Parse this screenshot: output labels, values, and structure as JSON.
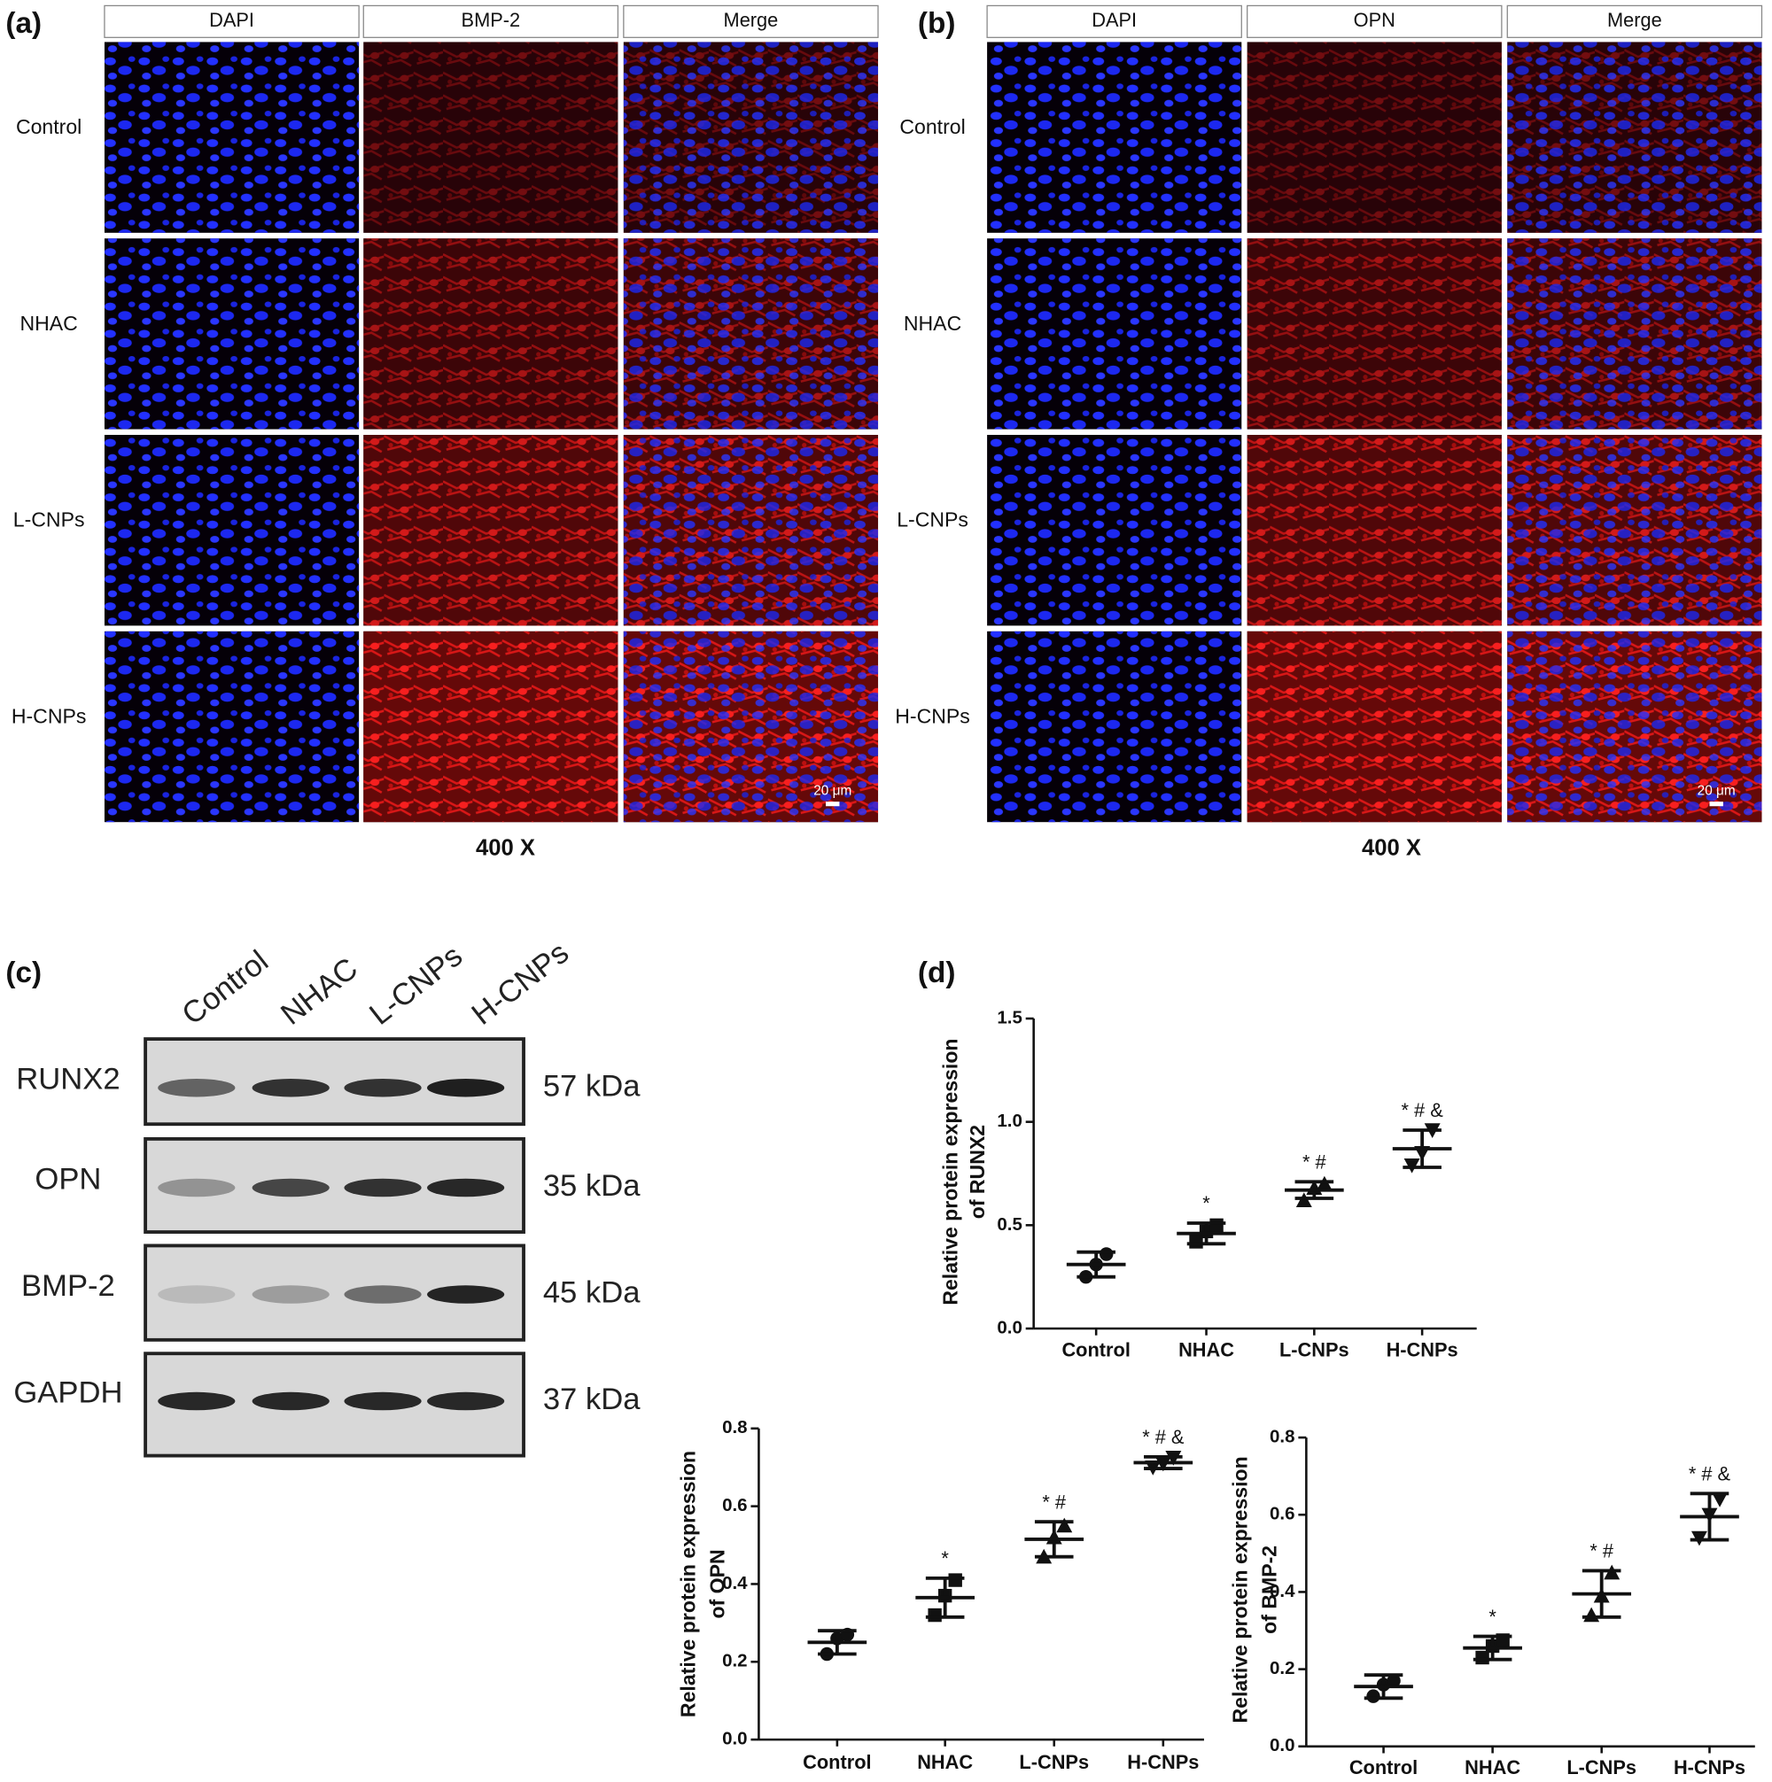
{
  "panels": {
    "a": {
      "label": "(a)",
      "columns": [
        "DAPI",
        "BMP-2",
        "Merge"
      ],
      "rows": [
        "Control",
        "NHAC",
        "L-CNPs",
        "H-CNPs"
      ],
      "scale_bar": "20 μm",
      "magnification": "400 X"
    },
    "b": {
      "label": "(b)",
      "columns": [
        "DAPI",
        "OPN",
        "Merge"
      ],
      "rows": [
        "Control",
        "NHAC",
        "L-CNPs",
        "H-CNPs"
      ],
      "scale_bar": "20 μm",
      "magnification": "400 X"
    },
    "c": {
      "label": "(c)",
      "lanes": [
        "Control",
        "NHAC",
        "L-CNPs",
        "H-CNPs"
      ],
      "proteins": [
        "RUNX2",
        "OPN",
        "BMP-2",
        "GAPDH"
      ],
      "weights": [
        "57 kDa",
        "35 kDa",
        "45 kDa",
        "37 kDa"
      ]
    },
    "d": {
      "label": "(d)"
    }
  },
  "chart_data": [
    {
      "type": "dotplot",
      "ylabel": [
        "Relative protein expression",
        "of RUNX2"
      ],
      "categories": [
        "Control",
        "NHAC",
        "L-CNPs",
        "H-CNPs"
      ],
      "values": [
        0.31,
        0.46,
        0.67,
        0.87
      ],
      "errors": [
        0.06,
        0.05,
        0.04,
        0.09
      ],
      "points": [
        [
          0.25,
          0.31,
          0.36
        ],
        [
          0.42,
          0.47,
          0.5
        ],
        [
          0.62,
          0.68,
          0.7
        ],
        [
          0.79,
          0.85,
          0.96
        ]
      ],
      "markers": [
        "circle",
        "square",
        "triangle",
        "triangle-down"
      ],
      "annotations": [
        null,
        "*",
        "* #",
        "* # &"
      ],
      "ylim": [
        0,
        1.5
      ],
      "yticks": [
        {
          "value": 0,
          "label": "0.0"
        },
        {
          "value": 0.5,
          "label": "0.5"
        },
        {
          "value": 1,
          "label": "1.0"
        },
        {
          "value": 1.5,
          "label": "1.5"
        }
      ],
      "color": "#111111"
    },
    {
      "type": "dotplot",
      "ylabel": [
        "Relative protein expression",
        "of OPN"
      ],
      "categories": [
        "Control",
        "NHAC",
        "L-CNPs",
        "H-CNPs"
      ],
      "values": [
        0.25,
        0.365,
        0.515,
        0.712
      ],
      "errors": [
        0.03,
        0.05,
        0.045,
        0.015
      ],
      "points": [
        [
          0.22,
          0.26,
          0.27
        ],
        [
          0.32,
          0.37,
          0.41
        ],
        [
          0.47,
          0.52,
          0.55
        ],
        [
          0.7,
          0.71,
          0.725
        ]
      ],
      "markers": [
        "circle",
        "square",
        "triangle",
        "triangle-down"
      ],
      "annotations": [
        null,
        "*",
        "* #",
        "* # &"
      ],
      "ylim": [
        0,
        0.8
      ],
      "yticks": [
        {
          "value": 0,
          "label": "0.0"
        },
        0.2,
        0.4,
        0.6,
        0.8
      ],
      "color": "#111111"
    },
    {
      "type": "dotplot",
      "ylabel": [
        "Relative protein expression",
        "of BMP-2"
      ],
      "categories": [
        "Control",
        "NHAC",
        "L-CNPs",
        "H-CNPs"
      ],
      "values": [
        0.155,
        0.255,
        0.395,
        0.595
      ],
      "errors": [
        0.03,
        0.03,
        0.06,
        0.06
      ],
      "points": [
        [
          0.13,
          0.16,
          0.17
        ],
        [
          0.23,
          0.26,
          0.275
        ],
        [
          0.34,
          0.39,
          0.45
        ],
        [
          0.54,
          0.6,
          0.64
        ]
      ],
      "markers": [
        "circle",
        "square",
        "triangle",
        "triangle-down"
      ],
      "annotations": [
        null,
        "*",
        "* #",
        "* # &"
      ],
      "ylim": [
        0,
        0.8
      ],
      "yticks": [
        {
          "value": 0,
          "label": "0.0"
        },
        0.2,
        0.4,
        0.6,
        0.8
      ],
      "color": "#111111"
    }
  ]
}
